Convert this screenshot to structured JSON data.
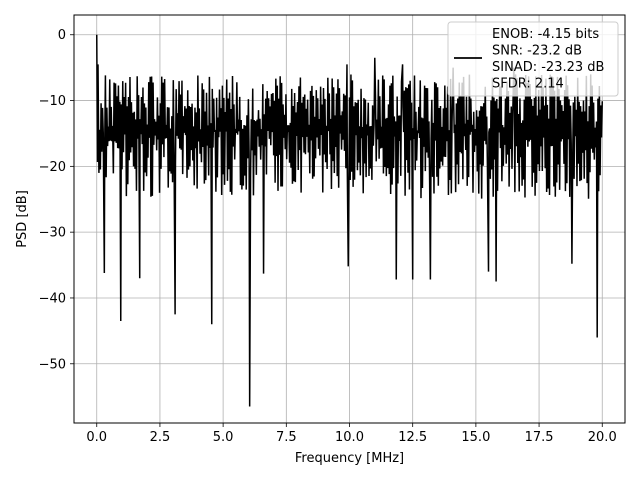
{
  "chart_data": {
    "type": "line",
    "title": "",
    "xlabel": "Frequency [MHz]",
    "ylabel": "PSD [dB]",
    "xlim": [
      -0.9,
      20.9
    ],
    "ylim": [
      -59,
      3
    ],
    "xticks": [
      0,
      2.5,
      5,
      7.5,
      10,
      12.5,
      15,
      17.5,
      20
    ],
    "xtick_labels": [
      "0.0",
      "2.5",
      "5.0",
      "7.5",
      "10.0",
      "12.5",
      "15.0",
      "17.5",
      "20.0"
    ],
    "yticks": [
      0,
      -10,
      -20,
      -30,
      -40,
      -50
    ],
    "ytick_labels": [
      "0",
      "−10",
      "−20",
      "−30",
      "−40",
      "−50"
    ],
    "grid": true,
    "legend_position": "top-right",
    "legend": {
      "lines": [
        "ENOB: -4.15 bits",
        "SNR: -23.2 dB",
        "SINAD: -23.23 dB",
        "SFDR: 2.14"
      ]
    },
    "series": [
      {
        "color": "#000000",
        "x_range": [
          0,
          20
        ],
        "n_points": 700,
        "typical_band": [
          -25,
          -6
        ],
        "peaks": [
          {
            "x": 0.0,
            "y": 0
          },
          {
            "x": 0.05,
            "y": -4.5
          },
          {
            "x": 11.0,
            "y": -3.5
          },
          {
            "x": 9.9,
            "y": -4.5
          },
          {
            "x": 12.1,
            "y": -4.5
          },
          {
            "x": 14.1,
            "y": -5.0
          },
          {
            "x": 16.5,
            "y": -5.0
          }
        ],
        "dips": [
          {
            "x": 0.3,
            "y": -36.2
          },
          {
            "x": 0.95,
            "y": -43.5
          },
          {
            "x": 1.7,
            "y": -37
          },
          {
            "x": 3.1,
            "y": -42.5
          },
          {
            "x": 4.55,
            "y": -44
          },
          {
            "x": 6.05,
            "y": -56.5
          },
          {
            "x": 6.6,
            "y": -36.3
          },
          {
            "x": 9.95,
            "y": -35.2
          },
          {
            "x": 11.85,
            "y": -37.2
          },
          {
            "x": 12.5,
            "y": -37.2
          },
          {
            "x": 13.2,
            "y": -37.2
          },
          {
            "x": 15.5,
            "y": -36
          },
          {
            "x": 15.8,
            "y": -37.5
          },
          {
            "x": 18.8,
            "y": -34.8
          },
          {
            "x": 19.8,
            "y": -46
          }
        ]
      }
    ]
  }
}
